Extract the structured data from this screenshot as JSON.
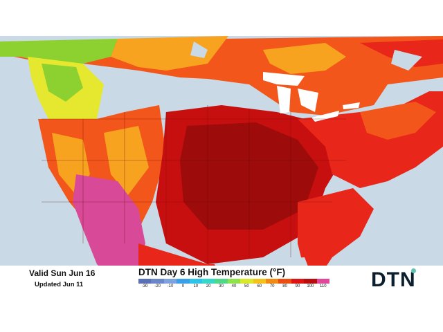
{
  "valid_text": "Valid Sun Jun 16",
  "updated_text": "Updated Jun 11",
  "title": "DTN Day 6 High Temperature (°F)",
  "scale_ticks": [
    "-30",
    "-20",
    "-10",
    "0",
    "10",
    "20",
    "30",
    "40",
    "50",
    "60",
    "70",
    "80",
    "90",
    "100",
    "110"
  ],
  "scale_colors": [
    "#5a6fb5",
    "#6b86c9",
    "#7fa1dd",
    "#3aa0e8",
    "#2fc3e8",
    "#37d8c9",
    "#4fd88a",
    "#8ee24c",
    "#d9e82d",
    "#f3c21d",
    "#f08c16",
    "#ea4e13",
    "#dd1414",
    "#b80d0d",
    "#e0489a"
  ],
  "brand": "DTN",
  "colors": {
    "ocean": "#c9d9e6",
    "land_outside": "#d8d8d8",
    "hot_core": "#9e0b0b",
    "very_hot": "#c80f0f",
    "hot": "#e8271a",
    "warm": "#f2561a",
    "mild": "#f7a320",
    "cool": "#e5e82f",
    "cooler": "#8cd12f",
    "extreme": "#d84a97"
  }
}
